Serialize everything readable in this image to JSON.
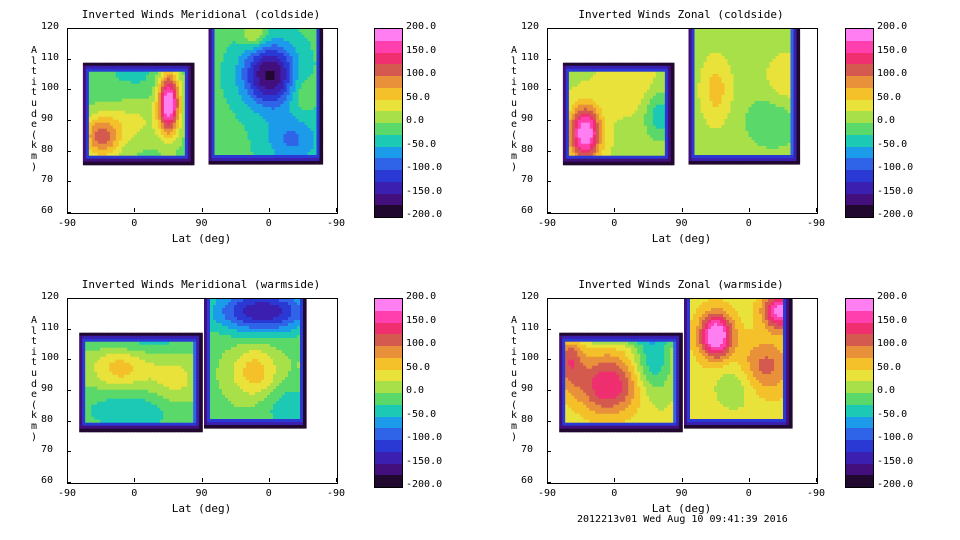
{
  "footer": "2012213v01 Wed Aug 10 09:41:39 2016",
  "colorbar": {
    "labels": [
      "200.0",
      "150.0",
      "100.0",
      "50.0",
      "0.0",
      "-50.0",
      "-100.0",
      "-150.0",
      "-200.0"
    ],
    "colors_top_to_bottom": [
      "#ff7ff2",
      "#ff3fae",
      "#ef2f6f",
      "#d45a4f",
      "#e8903a",
      "#f4c12a",
      "#e8e23a",
      "#a8e04a",
      "#5ad86a",
      "#1cc9b4",
      "#1c9bea",
      "#2f63e8",
      "#2a38d4",
      "#3a1fb0",
      "#420f7c",
      "#21082e"
    ]
  },
  "chart_data": [
    {
      "type": "contour",
      "title": "Inverted Winds Meridional (coldside)",
      "xlabel": "Lat (deg)",
      "ylabel": "Altitude (km)",
      "x_ticks": [
        "-90",
        "0",
        "90",
        "0",
        "-90"
      ],
      "y_ticks": [
        "120",
        "110",
        "100",
        "90",
        "80",
        "70",
        "60"
      ],
      "ylim": [
        60,
        120
      ],
      "clim": [
        -200,
        200
      ],
      "grid": false,
      "coverage": [
        {
          "x_range": [
            "-75",
            "60"
          ],
          "alt_range": [
            76,
            109
          ]
        },
        {
          "x_range": [
            "90 (descending side)",
            "-45"
          ],
          "alt_range": [
            76,
            120
          ]
        }
      ],
      "features": [
        {
          "x": -45,
          "alt": 85,
          "value": 110,
          "note": "strong positive core"
        },
        {
          "x": 45,
          "alt": 95,
          "value": 200,
          "note": "strong positive core"
        },
        {
          "x": 0,
          "alt": 105,
          "value": -150,
          "note": "negative core (descending side)"
        }
      ]
    },
    {
      "type": "contour",
      "title": "Inverted Winds Zonal (coldside)",
      "xlabel": "Lat (deg)",
      "ylabel": "Altitude (km)",
      "x_ticks": [
        "-90",
        "0",
        "90",
        "0",
        "-90"
      ],
      "y_ticks": [
        "120",
        "110",
        "100",
        "90",
        "80",
        "70",
        "60"
      ],
      "ylim": [
        60,
        120
      ],
      "clim": [
        -200,
        200
      ],
      "grid": false,
      "coverage": [
        {
          "x_range": [
            "-75",
            "75"
          ],
          "alt_range": [
            76,
            109
          ]
        },
        {
          "x_range": [
            "90 (descending side)",
            "-45"
          ],
          "alt_range": [
            76,
            120
          ]
        }
      ],
      "features": [
        {
          "x": -40,
          "alt": 86,
          "value": 180,
          "note": "strong positive core"
        },
        {
          "x": 20,
          "alt": 105,
          "value": 50,
          "note": "weak positive"
        },
        {
          "x": -20,
          "alt": 105,
          "value": 25,
          "note": "descending side, mostly near zero"
        }
      ]
    },
    {
      "type": "contour",
      "title": "Inverted Winds Meridional (warmside)",
      "xlabel": "Lat (deg)",
      "ylabel": "Altitude (km)",
      "x_ticks": [
        "-90",
        "0",
        "90",
        "0",
        "-90"
      ],
      "y_ticks": [
        "120",
        "110",
        "100",
        "90",
        "80",
        "70",
        "60"
      ],
      "ylim": [
        60,
        120
      ],
      "clim": [
        -200,
        200
      ],
      "grid": false,
      "coverage": [
        {
          "x_range": [
            "-75",
            "90"
          ],
          "alt_range": [
            77,
            109
          ]
        },
        {
          "x_range": [
            "90 (descending side)",
            "-60"
          ],
          "alt_range": [
            78,
            120
          ]
        }
      ],
      "features": [
        {
          "x": -20,
          "alt": 96,
          "value": 50,
          "note": "positive core"
        },
        {
          "x": 70,
          "alt": 96,
          "value": 50,
          "note": "positive core (descending side)"
        },
        {
          "x": 30,
          "alt": 115,
          "value": -120,
          "note": "negative top (descending side)"
        }
      ]
    },
    {
      "type": "contour",
      "title": "Inverted Winds Zonal (warmside)",
      "xlabel": "Lat (deg)",
      "ylabel": "Altitude (km)",
      "x_ticks": [
        "-90",
        "0",
        "90",
        "0",
        "-90"
      ],
      "y_ticks": [
        "120",
        "110",
        "100",
        "90",
        "80",
        "70",
        "60"
      ],
      "ylim": [
        60,
        120
      ],
      "clim": [
        -200,
        200
      ],
      "grid": false,
      "coverage": [
        {
          "x_range": [
            "-75",
            "90"
          ],
          "alt_range": [
            77,
            109
          ]
        },
        {
          "x_range": [
            "90 (descending side)",
            "-60"
          ],
          "alt_range": [
            78,
            120
          ]
        }
      ],
      "features": [
        {
          "x": -10,
          "alt": 92,
          "value": 120,
          "note": "positive core"
        },
        {
          "x": 45,
          "alt": 107,
          "value": 160,
          "note": "strong positive core (descending side)"
        },
        {
          "x": -10,
          "alt": 117,
          "value": 140,
          "note": "positive top (descending side)"
        }
      ]
    }
  ]
}
